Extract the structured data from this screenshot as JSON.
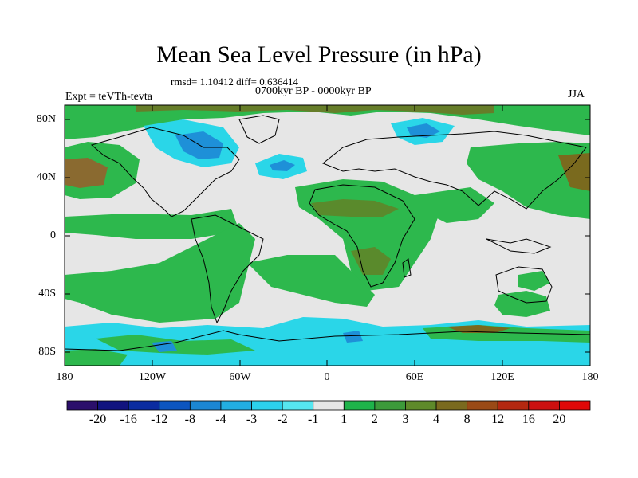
{
  "title": "Mean Sea Level Pressure (in hPa)",
  "stats": "rmsd= 1.10412 diff= 0.636414",
  "period": "0700kyr BP - 0000kyr BP",
  "expt": "Expt = teVTh-tevta",
  "season": "JJA",
  "lat_ticks": [
    "80N",
    "40N",
    "0",
    "40S",
    "80S"
  ],
  "lon_ticks": [
    "180",
    "120W",
    "60W",
    "0",
    "60E",
    "120E",
    "180"
  ],
  "colorbar": {
    "labels": [
      "-20",
      "-16",
      "-12",
      "-8",
      "-4",
      "-3",
      "-2",
      "-1",
      "1",
      "2",
      "3",
      "4",
      "8",
      "12",
      "16",
      "20"
    ],
    "colors": [
      "#2b0f6b",
      "#11137f",
      "#0b2ca0",
      "#0c55c0",
      "#1b86d3",
      "#22aee2",
      "#2cd1ec",
      "#56e6f0",
      "#e6e6e6",
      "#1eb34a",
      "#3c9a3a",
      "#5e8a2a",
      "#7a6a1e",
      "#9a4a16",
      "#b42810",
      "#cc1010",
      "#e00808"
    ]
  },
  "map_colors": {
    "background": "#e6e6e6",
    "green": "#2db84d",
    "dark_green": "#5a8a2c",
    "olive": "#7a6a1e",
    "cyan": "#2ad6e8",
    "blue": "#1e90d8",
    "coast": "#000000"
  }
}
